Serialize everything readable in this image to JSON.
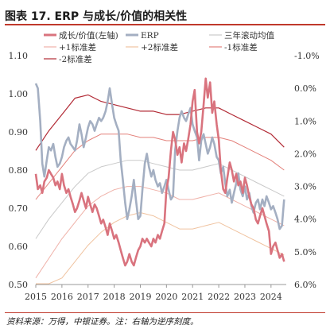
{
  "title": "图表 17. ERP 与成长/价值的相关性",
  "source_text": "资料来源：万得，中银证券。注：右轴为逆序刻度。",
  "colors": {
    "ratio": "#d9737e",
    "erp": "#a4afc2",
    "rolling": "#c9c9c9",
    "plus1": "#efb1a8",
    "plus2": "#f0c3a0",
    "minus1": "#e3807a",
    "minus2": "#b22a35",
    "accent": "#c0392b"
  },
  "chart_data": {
    "type": "line",
    "x_ticks": [
      "2015",
      "2016",
      "2017",
      "2018",
      "2019",
      "2020",
      "2021",
      "2022",
      "2023",
      "2024"
    ],
    "xlim": [
      "2015-01",
      "2024-08"
    ],
    "y_left": {
      "lim": [
        0.5,
        1.1
      ],
      "ticks": [
        "0.50",
        "0.60",
        "0.70",
        "0.80",
        "0.90",
        "1.00",
        "1.10"
      ]
    },
    "y_right": {
      "lim": [
        6.0,
        -1.0
      ],
      "inverted": true,
      "ticks": [
        "6.0%",
        "5.0%",
        "4.0%",
        "3.0%",
        "2.0%",
        "1.0%",
        "0.0%",
        "-1.0%"
      ]
    },
    "legend": [
      {
        "key": "ratio",
        "label": "成长/价值(左轴)"
      },
      {
        "key": "erp",
        "label": "ERP"
      },
      {
        "key": "rolling",
        "label": "三年滚动均值"
      },
      {
        "key": "plus1",
        "label": "+1标准差"
      },
      {
        "key": "plus2",
        "label": "+2标准差"
      },
      {
        "key": "minus1",
        "label": "-1标准差"
      },
      {
        "key": "minus2",
        "label": "-2标准差"
      }
    ],
    "series": [
      {
        "key": "ratio",
        "name": "成长/价值(左轴)",
        "axis": "left",
        "x": [
          2015.0,
          2015.08,
          2015.17,
          2015.25,
          2015.33,
          2015.42,
          2015.5,
          2015.58,
          2015.67,
          2015.75,
          2015.83,
          2015.92,
          2016.0,
          2016.08,
          2016.17,
          2016.25,
          2016.33,
          2016.42,
          2016.5,
          2016.58,
          2016.67,
          2016.75,
          2016.83,
          2016.92,
          2017.0,
          2017.08,
          2017.17,
          2017.25,
          2017.33,
          2017.42,
          2017.5,
          2017.58,
          2017.67,
          2017.75,
          2017.83,
          2017.92,
          2018.0,
          2018.08,
          2018.17,
          2018.25,
          2018.33,
          2018.42,
          2018.5,
          2018.58,
          2018.67,
          2018.75,
          2018.83,
          2018.92,
          2019.0,
          2019.08,
          2019.17,
          2019.25,
          2019.33,
          2019.42,
          2019.5,
          2019.58,
          2019.67,
          2019.75,
          2019.83,
          2019.92,
          2020.0,
          2020.08,
          2020.17,
          2020.25,
          2020.33,
          2020.42,
          2020.5,
          2020.58,
          2020.67,
          2020.75,
          2020.83,
          2020.92,
          2021.0,
          2021.08,
          2021.17,
          2021.25,
          2021.33,
          2021.42,
          2021.5,
          2021.58,
          2021.67,
          2021.75,
          2021.83,
          2021.92,
          2022.0,
          2022.08,
          2022.17,
          2022.25,
          2022.33,
          2022.42,
          2022.5,
          2022.58,
          2022.67,
          2022.75,
          2022.83,
          2022.92,
          2023.0,
          2023.08,
          2023.17,
          2023.25,
          2023.33,
          2023.42,
          2023.5,
          2023.58,
          2023.67,
          2023.75,
          2023.83,
          2023.92,
          2024.0,
          2024.08,
          2024.17,
          2024.25,
          2024.33,
          2024.42,
          2024.5
        ],
        "values": [
          0.79,
          0.75,
          0.76,
          0.74,
          0.77,
          0.78,
          0.8,
          0.79,
          0.78,
          0.76,
          0.77,
          0.75,
          0.79,
          0.76,
          0.74,
          0.75,
          0.73,
          0.71,
          0.69,
          0.7,
          0.72,
          0.74,
          0.72,
          0.7,
          0.73,
          0.71,
          0.69,
          0.71,
          0.7,
          0.68,
          0.66,
          0.67,
          0.65,
          0.63,
          0.66,
          0.64,
          0.62,
          0.63,
          0.61,
          0.59,
          0.57,
          0.55,
          0.56,
          0.58,
          0.56,
          0.55,
          0.57,
          0.59,
          0.6,
          0.62,
          0.61,
          0.62,
          0.61,
          0.6,
          0.62,
          0.61,
          0.63,
          0.62,
          0.64,
          0.66,
          0.75,
          0.78,
          0.85,
          0.9,
          0.88,
          0.84,
          0.86,
          0.82,
          0.87,
          0.85,
          0.88,
          0.92,
          0.98,
          1.01,
          0.9,
          0.87,
          0.9,
          0.97,
          1.04,
          0.99,
          1.03,
          0.95,
          0.98,
          0.92,
          0.88,
          0.8,
          0.75,
          0.74,
          0.78,
          0.82,
          0.8,
          0.77,
          0.79,
          0.76,
          0.77,
          0.74,
          0.78,
          0.76,
          0.73,
          0.71,
          0.7,
          0.67,
          0.66,
          0.68,
          0.7,
          0.68,
          0.66,
          0.64,
          0.58,
          0.6,
          0.61,
          0.59,
          0.57,
          0.58,
          0.56
        ]
      },
      {
        "key": "erp",
        "name": "ERP",
        "axis": "right",
        "x": [
          2015.0,
          2015.08,
          2015.17,
          2015.25,
          2015.33,
          2015.42,
          2015.5,
          2015.58,
          2015.67,
          2015.75,
          2015.83,
          2015.92,
          2016.0,
          2016.08,
          2016.17,
          2016.25,
          2016.33,
          2016.42,
          2016.5,
          2016.58,
          2016.67,
          2016.75,
          2016.83,
          2016.92,
          2017.0,
          2017.08,
          2017.17,
          2017.25,
          2017.33,
          2017.42,
          2017.5,
          2017.58,
          2017.67,
          2017.75,
          2017.83,
          2017.92,
          2018.0,
          2018.08,
          2018.17,
          2018.25,
          2018.33,
          2018.42,
          2018.5,
          2018.58,
          2018.67,
          2018.75,
          2018.83,
          2018.92,
          2019.0,
          2019.08,
          2019.17,
          2019.25,
          2019.33,
          2019.42,
          2019.5,
          2019.58,
          2019.67,
          2019.75,
          2019.83,
          2019.92,
          2020.0,
          2020.08,
          2020.17,
          2020.25,
          2020.33,
          2020.42,
          2020.5,
          2020.58,
          2020.67,
          2020.75,
          2020.83,
          2020.92,
          2021.0,
          2021.08,
          2021.17,
          2021.25,
          2021.33,
          2021.42,
          2021.5,
          2021.58,
          2021.67,
          2021.75,
          2021.83,
          2021.92,
          2022.0,
          2022.08,
          2022.17,
          2022.25,
          2022.33,
          2022.42,
          2022.5,
          2022.58,
          2022.67,
          2022.75,
          2022.83,
          2022.92,
          2023.0,
          2023.08,
          2023.17,
          2023.25,
          2023.33,
          2023.42,
          2023.5,
          2023.58,
          2023.67,
          2023.75,
          2023.83,
          2023.92,
          2024.0,
          2024.08,
          2024.17,
          2024.25,
          2024.33,
          2024.42,
          2024.5
        ],
        "values": [
          -0.15,
          0.0,
          1.0,
          2.3,
          2.7,
          2.2,
          1.8,
          1.9,
          1.7,
          2.1,
          2.4,
          2.3,
          2.1,
          1.8,
          1.6,
          1.5,
          1.7,
          1.8,
          1.9,
          1.6,
          1.1,
          1.4,
          1.8,
          1.5,
          1.2,
          1.0,
          1.1,
          1.3,
          1.1,
          0.9,
          1.0,
          0.9,
          0.7,
          0.4,
          0.0,
          0.5,
          0.9,
          1.1,
          1.3,
          2.2,
          2.8,
          3.5,
          4.0,
          3.7,
          3.3,
          2.8,
          3.4,
          4.0,
          3.9,
          3.1,
          2.3,
          2.0,
          2.4,
          2.7,
          2.5,
          2.8,
          3.0,
          2.9,
          3.2,
          3.0,
          2.8,
          3.1,
          3.4,
          3.3,
          1.9,
          1.3,
          0.9,
          0.7,
          0.9,
          1.0,
          0.8,
          0.6,
          1.1,
          1.3,
          1.5,
          2.2,
          1.6,
          1.4,
          1.7,
          2.0,
          1.8,
          1.5,
          1.7,
          2.1,
          2.2,
          2.6,
          2.4,
          2.9,
          3.3,
          3.1,
          3.5,
          3.2,
          2.9,
          2.6,
          3.1,
          3.3,
          3.0,
          3.4,
          3.2,
          3.6,
          3.8,
          3.5,
          3.4,
          3.7,
          3.4,
          3.6,
          3.3,
          3.5,
          3.7,
          3.6,
          3.8,
          4.0,
          4.3,
          4.2,
          3.4
        ]
      },
      {
        "key": "rolling",
        "name": "三年滚动均值",
        "axis": "right",
        "x": [
          2015.0,
          2015.5,
          2016.0,
          2016.5,
          2017.0,
          2017.5,
          2018.0,
          2018.5,
          2019.0,
          2019.5,
          2020.0,
          2020.5,
          2021.0,
          2021.5,
          2022.0,
          2022.5,
          2023.0,
          2023.5,
          2024.0,
          2024.5
        ],
        "values": [
          4.6,
          4.0,
          3.5,
          3.0,
          2.6,
          2.4,
          2.3,
          2.2,
          2.2,
          2.3,
          2.4,
          2.5,
          2.5,
          2.4,
          2.3,
          2.5,
          2.7,
          2.9,
          3.1,
          3.3
        ]
      },
      {
        "key": "plus1",
        "name": "+1标准差",
        "axis": "right",
        "x": [
          2015.0,
          2015.5,
          2016.0,
          2016.5,
          2017.0,
          2017.5,
          2018.0,
          2018.5,
          2019.0,
          2019.5,
          2020.0,
          2020.5,
          2021.0,
          2021.5,
          2022.0,
          2022.5,
          2023.0,
          2023.5,
          2024.0,
          2024.5
        ],
        "values": [
          5.8,
          5.2,
          4.6,
          4.1,
          3.6,
          3.3,
          3.1,
          3.0,
          3.0,
          3.1,
          3.2,
          3.4,
          3.4,
          3.3,
          3.2,
          3.4,
          3.6,
          3.8,
          4.0,
          4.2
        ]
      },
      {
        "key": "plus2",
        "name": "+2标准差",
        "axis": "right",
        "x": [
          2015.0,
          2015.5,
          2016.0,
          2016.5,
          2017.0,
          2017.5,
          2018.0,
          2018.5,
          2019.0,
          2019.5,
          2020.0,
          2020.5,
          2021.0,
          2021.5,
          2022.0,
          2022.5,
          2023.0,
          2023.5,
          2024.0,
          2024.5
        ],
        "values": [
          6.5,
          6.3,
          5.8,
          5.3,
          4.8,
          4.4,
          4.1,
          3.9,
          3.8,
          3.9,
          4.1,
          4.3,
          4.3,
          4.2,
          4.1,
          4.3,
          4.5,
          4.7,
          4.9,
          5.1
        ]
      },
      {
        "key": "minus1",
        "name": "-1标准差",
        "axis": "right",
        "x": [
          2015.0,
          2015.5,
          2016.0,
          2016.5,
          2017.0,
          2017.5,
          2018.0,
          2018.5,
          2019.0,
          2019.5,
          2020.0,
          2020.5,
          2021.0,
          2021.5,
          2022.0,
          2022.5,
          2023.0,
          2023.5,
          2024.0,
          2024.5
        ],
        "values": [
          3.4,
          2.9,
          2.4,
          1.9,
          1.6,
          1.4,
          1.4,
          1.4,
          1.5,
          1.5,
          1.6,
          1.6,
          1.6,
          1.5,
          1.5,
          1.6,
          1.8,
          2.0,
          2.2,
          2.5
        ]
      },
      {
        "key": "minus2",
        "name": "-2标准差",
        "axis": "right",
        "x": [
          2015.0,
          2015.5,
          2016.0,
          2016.5,
          2017.0,
          2017.5,
          2018.0,
          2018.5,
          2019.0,
          2019.5,
          2020.0,
          2020.5,
          2021.0,
          2021.5,
          2022.0,
          2022.5,
          2023.0,
          2023.5,
          2024.0,
          2024.5
        ],
        "values": [
          1.9,
          1.3,
          0.8,
          0.3,
          0.2,
          0.4,
          0.5,
          0.6,
          0.7,
          0.7,
          0.8,
          0.8,
          0.7,
          0.6,
          0.6,
          0.8,
          1.0,
          1.2,
          1.4,
          1.8
        ]
      }
    ]
  }
}
